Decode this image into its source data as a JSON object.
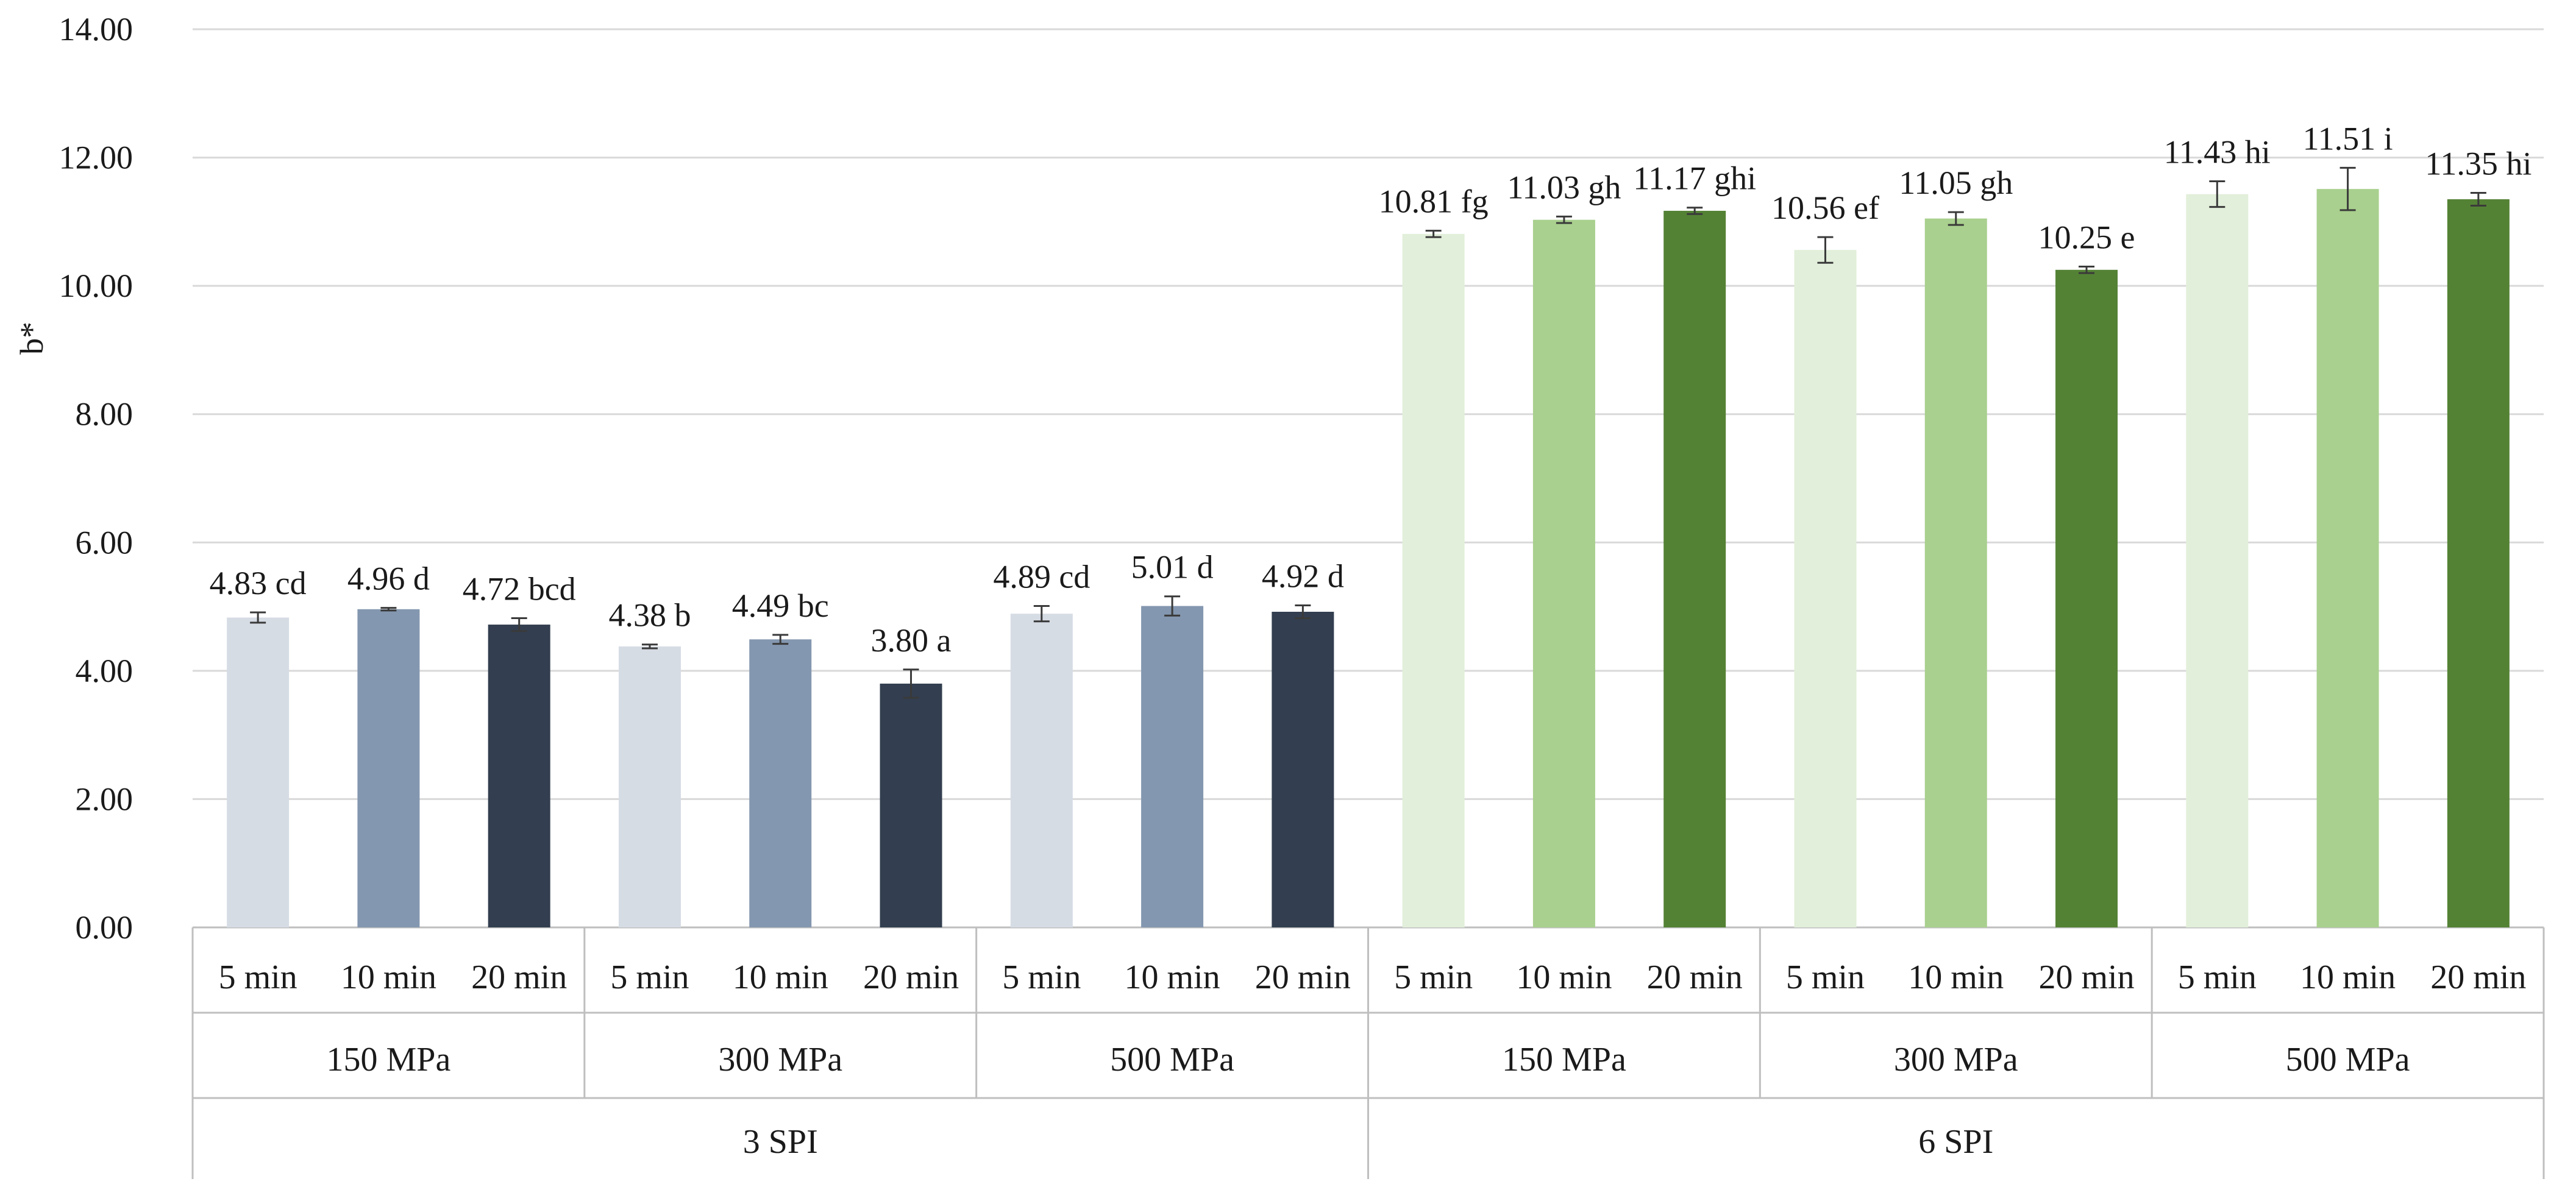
{
  "chart_data": {
    "type": "bar",
    "ylabel": "b*",
    "ylim": [
      0,
      14
    ],
    "y_ticks": [
      "0.00",
      "2.00",
      "4.00",
      "6.00",
      "8.00",
      "10.00",
      "12.00",
      "14.00"
    ],
    "grid": true,
    "outer_groups": [
      "3 SPI",
      "6 SPI"
    ],
    "pressures": [
      "150 MPa",
      "300 MPa",
      "500 MPa"
    ],
    "times": [
      "5 min",
      "10 min",
      "20 min"
    ],
    "bars": [
      {
        "spi": "3 SPI",
        "pressure": "150 MPa",
        "time": "5 min",
        "value": 4.83,
        "error": 0.08,
        "label": "4.83 cd"
      },
      {
        "spi": "3 SPI",
        "pressure": "150 MPa",
        "time": "10 min",
        "value": 4.96,
        "error": 0.02,
        "label": "4.96 d"
      },
      {
        "spi": "3 SPI",
        "pressure": "150 MPa",
        "time": "20 min",
        "value": 4.72,
        "error": 0.1,
        "label": "4.72 bcd"
      },
      {
        "spi": "3 SPI",
        "pressure": "300 MPa",
        "time": "5 min",
        "value": 4.38,
        "error": 0.03,
        "label": "4.38 b"
      },
      {
        "spi": "3 SPI",
        "pressure": "300 MPa",
        "time": "10 min",
        "value": 4.49,
        "error": 0.07,
        "label": "4.49 bc"
      },
      {
        "spi": "3 SPI",
        "pressure": "300 MPa",
        "time": "20 min",
        "value": 3.8,
        "error": 0.22,
        "label": "3.80 a"
      },
      {
        "spi": "3 SPI",
        "pressure": "500 MPa",
        "time": "5 min",
        "value": 4.89,
        "error": 0.12,
        "label": "4.89 cd"
      },
      {
        "spi": "3 SPI",
        "pressure": "500 MPa",
        "time": "10 min",
        "value": 5.01,
        "error": 0.15,
        "label": "5.01 d"
      },
      {
        "spi": "3 SPI",
        "pressure": "500 MPa",
        "time": "20 min",
        "value": 4.92,
        "error": 0.1,
        "label": "4.92 d"
      },
      {
        "spi": "6 SPI",
        "pressure": "150 MPa",
        "time": "5 min",
        "value": 10.81,
        "error": 0.05,
        "label": "10.81 fg"
      },
      {
        "spi": "6 SPI",
        "pressure": "150 MPa",
        "time": "10 min",
        "value": 11.03,
        "error": 0.05,
        "label": "11.03 gh"
      },
      {
        "spi": "6 SPI",
        "pressure": "150 MPa",
        "time": "20 min",
        "value": 11.17,
        "error": 0.05,
        "label": "11.17 ghi"
      },
      {
        "spi": "6 SPI",
        "pressure": "300 MPa",
        "time": "5 min",
        "value": 10.56,
        "error": 0.2,
        "label": "10.56 ef"
      },
      {
        "spi": "6 SPI",
        "pressure": "300 MPa",
        "time": "10 min",
        "value": 11.05,
        "error": 0.1,
        "label": "11.05 gh"
      },
      {
        "spi": "6 SPI",
        "pressure": "300 MPa",
        "time": "20 min",
        "value": 10.25,
        "error": 0.05,
        "label": "10.25 e"
      },
      {
        "spi": "6 SPI",
        "pressure": "500 MPa",
        "time": "5 min",
        "value": 11.43,
        "error": 0.2,
        "label": "11.43 hi"
      },
      {
        "spi": "6 SPI",
        "pressure": "500 MPa",
        "time": "10 min",
        "value": 11.51,
        "error": 0.33,
        "label": "11.51 i"
      },
      {
        "spi": "6 SPI",
        "pressure": "500 MPa",
        "time": "20 min",
        "value": 11.35,
        "error": 0.1,
        "label": "11.35 hi"
      }
    ],
    "colors": {
      "3 SPI": {
        "5 min": "#d6dce4",
        "10 min": "#8497b0",
        "20 min": "#333f50"
      },
      "6 SPI": {
        "5 min": "#e2efda",
        "10 min": "#a9d08e",
        "20 min": "#548235"
      }
    },
    "gridline_color": "#d9d9d9",
    "axis_color": "#bfbfbf",
    "error_bar_color": "#3a3a3a"
  }
}
